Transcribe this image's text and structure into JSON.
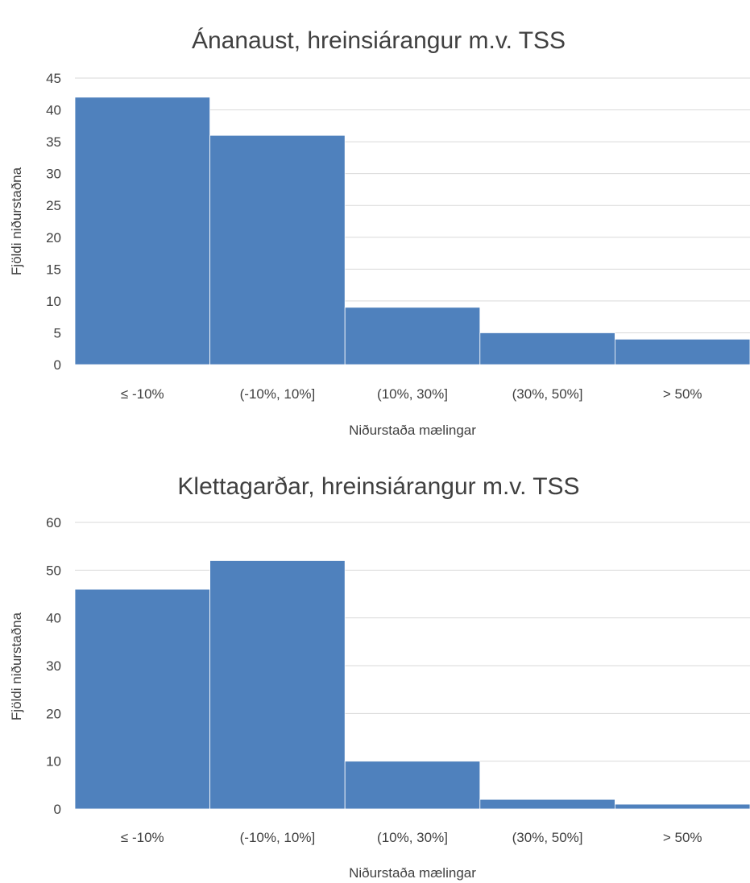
{
  "chart_data": [
    {
      "type": "bar",
      "title": "Ánanaust, hreinsiárangur m.v. TSS",
      "xlabel": "Niðurstaða mælingar",
      "ylabel": "Fjöldi niðurstaðna",
      "categories": [
        "≤ -10%",
        "(-10%, 10%]",
        "(10%, 30%]",
        "(30%, 50%]",
        "> 50%"
      ],
      "values": [
        42,
        36,
        9,
        5,
        4
      ],
      "ylim": [
        0,
        45
      ],
      "yticks": [
        0,
        5,
        10,
        15,
        20,
        25,
        30,
        35,
        40,
        45
      ],
      "grid": true,
      "color": "#4f81bd"
    },
    {
      "type": "bar",
      "title": "Klettagarðar, hreinsiárangur m.v. TSS",
      "xlabel": "Niðurstaða mælingar",
      "ylabel": "Fjöldi niðurstaðna",
      "categories": [
        "≤ -10%",
        "(-10%, 10%]",
        "(10%, 30%]",
        "(30%, 50%]",
        "> 50%"
      ],
      "values": [
        46,
        52,
        10,
        2,
        1
      ],
      "ylim": [
        0,
        60
      ],
      "yticks": [
        0,
        10,
        20,
        30,
        40,
        50,
        60
      ],
      "grid": true,
      "color": "#4f81bd"
    }
  ]
}
